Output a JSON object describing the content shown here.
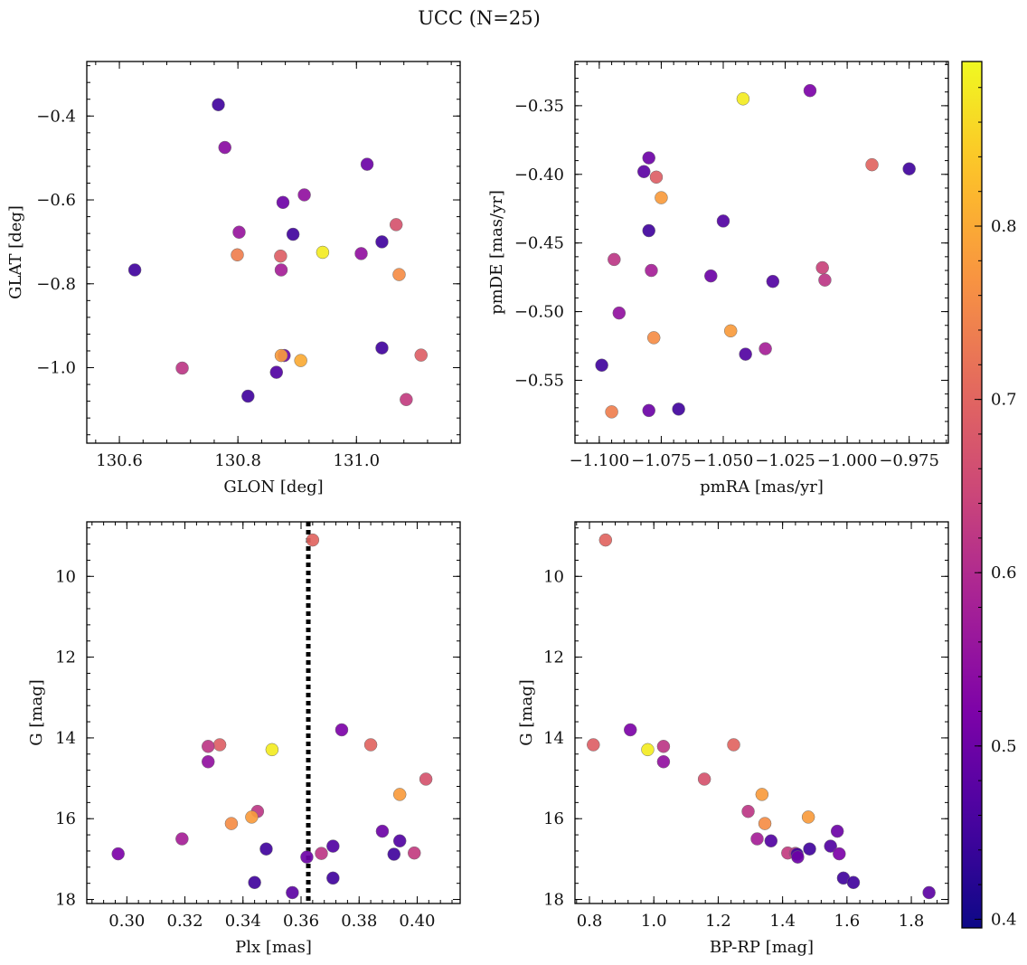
{
  "figure": {
    "title": "UCC (N=25)"
  },
  "colorbar": {
    "colormap": "plasma",
    "vmin": 0.395,
    "vmax": 0.895,
    "ticks": [
      0.4,
      0.5,
      0.6,
      0.7,
      0.8
    ],
    "tick_labels": [
      "0.4",
      "0.5",
      "0.6",
      "0.7",
      "0.8"
    ]
  },
  "chart_data": [
    {
      "type": "scatter",
      "xlabel": "GLON [deg]",
      "ylabel": "GLAT [deg]",
      "xlim": [
        130.545,
        131.175
      ],
      "ylim": [
        -1.18,
        -0.27
      ],
      "y_inverted": false,
      "xticks": [
        130.6,
        130.8,
        131.0
      ],
      "xtick_labels": [
        "130.6",
        "130.8",
        "131.0"
      ],
      "yticks": [
        -0.4,
        -0.6,
        -0.8,
        -1.0
      ],
      "ytick_labels": [
        "−0.4",
        "−0.6",
        "−0.8",
        "−1.0"
      ],
      "points": [
        {
          "x": 130.767,
          "y": -0.373,
          "c": 0.45
        },
        {
          "x": 130.778,
          "y": -0.475,
          "c": 0.54
        },
        {
          "x": 131.018,
          "y": -0.515,
          "c": 0.5
        },
        {
          "x": 130.912,
          "y": -0.588,
          "c": 0.55
        },
        {
          "x": 130.876,
          "y": -0.606,
          "c": 0.5
        },
        {
          "x": 131.067,
          "y": -0.659,
          "c": 0.67
        },
        {
          "x": 130.802,
          "y": -0.677,
          "c": 0.56
        },
        {
          "x": 130.893,
          "y": -0.682,
          "c": 0.45
        },
        {
          "x": 131.043,
          "y": -0.7,
          "c": 0.45
        },
        {
          "x": 130.943,
          "y": -0.725,
          "c": 0.88
        },
        {
          "x": 131.008,
          "y": -0.728,
          "c": 0.55
        },
        {
          "x": 130.799,
          "y": -0.731,
          "c": 0.74
        },
        {
          "x": 130.872,
          "y": -0.734,
          "c": 0.69
        },
        {
          "x": 130.626,
          "y": -0.767,
          "c": 0.45
        },
        {
          "x": 130.873,
          "y": -0.767,
          "c": 0.58
        },
        {
          "x": 131.072,
          "y": -0.778,
          "c": 0.76
        },
        {
          "x": 131.043,
          "y": -0.953,
          "c": 0.45
        },
        {
          "x": 131.109,
          "y": -0.97,
          "c": 0.69
        },
        {
          "x": 130.878,
          "y": -0.971,
          "c": 0.5
        },
        {
          "x": 130.873,
          "y": -0.971,
          "c": 0.78
        },
        {
          "x": 130.906,
          "y": -0.983,
          "c": 0.8
        },
        {
          "x": 130.706,
          "y": -1.001,
          "c": 0.62
        },
        {
          "x": 130.865,
          "y": -1.011,
          "c": 0.47
        },
        {
          "x": 130.817,
          "y": -1.068,
          "c": 0.45
        },
        {
          "x": 131.084,
          "y": -1.076,
          "c": 0.63
        }
      ]
    },
    {
      "type": "scatter",
      "xlabel": "pmRA [mas/yr]",
      "ylabel": "pmDE [mas/yr]",
      "xlim": [
        -1.1098,
        -0.9592
      ],
      "ylim": [
        -0.5958,
        -0.3178
      ],
      "y_inverted": false,
      "xticks": [
        -1.1,
        -1.075,
        -1.05,
        -1.025,
        -1.0,
        -0.975
      ],
      "xtick_labels": [
        "−1.100",
        "−1.075",
        "−1.050",
        "−1.025",
        "−1.000",
        "−0.975"
      ],
      "yticks": [
        -0.35,
        -0.4,
        -0.45,
        -0.5,
        -0.55
      ],
      "ytick_labels": [
        "−0.35",
        "−0.40",
        "−0.45",
        "−0.50",
        "−0.55"
      ],
      "points": [
        {
          "x": -1.042,
          "y": -0.345,
          "c": 0.88
        },
        {
          "x": -1.015,
          "y": -0.339,
          "c": 0.52
        },
        {
          "x": -1.08,
          "y": -0.388,
          "c": 0.5
        },
        {
          "x": -1.082,
          "y": -0.398,
          "c": 0.48
        },
        {
          "x": -1.077,
          "y": -0.402,
          "c": 0.69
        },
        {
          "x": -0.99,
          "y": -0.393,
          "c": 0.7
        },
        {
          "x": -0.975,
          "y": -0.396,
          "c": 0.45
        },
        {
          "x": -1.075,
          "y": -0.417,
          "c": 0.78
        },
        {
          "x": -1.05,
          "y": -0.434,
          "c": 0.47
        },
        {
          "x": -1.08,
          "y": -0.441,
          "c": 0.45
        },
        {
          "x": -1.094,
          "y": -0.462,
          "c": 0.62
        },
        {
          "x": -1.079,
          "y": -0.47,
          "c": 0.58
        },
        {
          "x": -1.01,
          "y": -0.468,
          "c": 0.64
        },
        {
          "x": -1.055,
          "y": -0.474,
          "c": 0.5
        },
        {
          "x": -1.009,
          "y": -0.477,
          "c": 0.62
        },
        {
          "x": -1.03,
          "y": -0.478,
          "c": 0.47
        },
        {
          "x": -1.092,
          "y": -0.501,
          "c": 0.55
        },
        {
          "x": -1.047,
          "y": -0.514,
          "c": 0.78
        },
        {
          "x": -1.078,
          "y": -0.519,
          "c": 0.76
        },
        {
          "x": -1.033,
          "y": -0.527,
          "c": 0.58
        },
        {
          "x": -1.041,
          "y": -0.531,
          "c": 0.47
        },
        {
          "x": -1.099,
          "y": -0.539,
          "c": 0.45
        },
        {
          "x": -1.068,
          "y": -0.571,
          "c": 0.45
        },
        {
          "x": -1.08,
          "y": -0.572,
          "c": 0.5
        },
        {
          "x": -1.095,
          "y": -0.573,
          "c": 0.74
        }
      ]
    },
    {
      "type": "scatter",
      "xlabel": "Plx [mas]",
      "ylabel": "G [mag]",
      "xlim": [
        0.2862,
        0.4148
      ],
      "ylim": [
        18.1,
        8.65
      ],
      "y_inverted": true,
      "vline": {
        "x": 0.3625,
        "style": "dotted",
        "color": "#000000"
      },
      "xticks": [
        0.3,
        0.32,
        0.34,
        0.36,
        0.38,
        0.4
      ],
      "xtick_labels": [
        "0.30",
        "0.32",
        "0.34",
        "0.36",
        "0.38",
        "0.40"
      ],
      "yticks": [
        10,
        12,
        14,
        16,
        18
      ],
      "ytick_labels": [
        "10",
        "12",
        "14",
        "16",
        "18"
      ],
      "points": [
        {
          "x": 0.364,
          "y": 9.1,
          "c": 0.7
        },
        {
          "x": 0.374,
          "y": 13.8,
          "c": 0.52
        },
        {
          "x": 0.332,
          "y": 14.17,
          "c": 0.69
        },
        {
          "x": 0.384,
          "y": 14.17,
          "c": 0.7
        },
        {
          "x": 0.328,
          "y": 14.21,
          "c": 0.62
        },
        {
          "x": 0.35,
          "y": 14.29,
          "c": 0.88
        },
        {
          "x": 0.328,
          "y": 14.59,
          "c": 0.55
        },
        {
          "x": 0.403,
          "y": 15.02,
          "c": 0.67
        },
        {
          "x": 0.394,
          "y": 15.4,
          "c": 0.78
        },
        {
          "x": 0.345,
          "y": 15.82,
          "c": 0.62
        },
        {
          "x": 0.343,
          "y": 15.96,
          "c": 0.78
        },
        {
          "x": 0.336,
          "y": 16.12,
          "c": 0.76
        },
        {
          "x": 0.388,
          "y": 16.31,
          "c": 0.5
        },
        {
          "x": 0.319,
          "y": 16.5,
          "c": 0.58
        },
        {
          "x": 0.394,
          "y": 16.55,
          "c": 0.47
        },
        {
          "x": 0.371,
          "y": 16.68,
          "c": 0.47
        },
        {
          "x": 0.348,
          "y": 16.75,
          "c": 0.45
        },
        {
          "x": 0.399,
          "y": 16.85,
          "c": 0.63
        },
        {
          "x": 0.367,
          "y": 16.86,
          "c": 0.62
        },
        {
          "x": 0.297,
          "y": 16.87,
          "c": 0.52
        },
        {
          "x": 0.392,
          "y": 16.88,
          "c": 0.45
        },
        {
          "x": 0.362,
          "y": 16.95,
          "c": 0.5
        },
        {
          "x": 0.371,
          "y": 17.47,
          "c": 0.45
        },
        {
          "x": 0.344,
          "y": 17.58,
          "c": 0.45
        },
        {
          "x": 0.357,
          "y": 17.83,
          "c": 0.48
        }
      ]
    },
    {
      "type": "scatter",
      "xlabel": "BP-RP [mag]",
      "ylabel": "G [mag]",
      "xlim": [
        0.755,
        1.915
      ],
      "ylim": [
        18.1,
        8.65
      ],
      "y_inverted": true,
      "xticks": [
        0.8,
        1.0,
        1.2,
        1.4,
        1.6,
        1.8
      ],
      "xtick_labels": [
        "0.8",
        "1.0",
        "1.2",
        "1.4",
        "1.6",
        "1.8"
      ],
      "yticks": [
        10,
        12,
        14,
        16,
        18
      ],
      "ytick_labels": [
        "10",
        "12",
        "14",
        "16",
        "18"
      ],
      "points": [
        {
          "x": 0.85,
          "y": 9.1,
          "c": 0.7
        },
        {
          "x": 0.927,
          "y": 13.8,
          "c": 0.52
        },
        {
          "x": 0.812,
          "y": 14.17,
          "c": 0.69
        },
        {
          "x": 1.248,
          "y": 14.17,
          "c": 0.7
        },
        {
          "x": 1.03,
          "y": 14.21,
          "c": 0.62
        },
        {
          "x": 0.981,
          "y": 14.29,
          "c": 0.88
        },
        {
          "x": 1.03,
          "y": 14.59,
          "c": 0.55
        },
        {
          "x": 1.157,
          "y": 15.02,
          "c": 0.67
        },
        {
          "x": 1.336,
          "y": 15.4,
          "c": 0.78
        },
        {
          "x": 1.293,
          "y": 15.82,
          "c": 0.62
        },
        {
          "x": 1.48,
          "y": 15.96,
          "c": 0.78
        },
        {
          "x": 1.345,
          "y": 16.12,
          "c": 0.76
        },
        {
          "x": 1.57,
          "y": 16.31,
          "c": 0.5
        },
        {
          "x": 1.321,
          "y": 16.5,
          "c": 0.58
        },
        {
          "x": 1.364,
          "y": 16.55,
          "c": 0.47
        },
        {
          "x": 1.549,
          "y": 16.68,
          "c": 0.47
        },
        {
          "x": 1.484,
          "y": 16.75,
          "c": 0.45
        },
        {
          "x": 1.416,
          "y": 16.85,
          "c": 0.63
        },
        {
          "x": 1.44,
          "y": 16.86,
          "c": 0.62
        },
        {
          "x": 1.576,
          "y": 16.87,
          "c": 0.52
        },
        {
          "x": 1.445,
          "y": 16.88,
          "c": 0.45
        },
        {
          "x": 1.447,
          "y": 16.95,
          "c": 0.5
        },
        {
          "x": 1.589,
          "y": 17.47,
          "c": 0.45
        },
        {
          "x": 1.62,
          "y": 17.58,
          "c": 0.45
        },
        {
          "x": 1.855,
          "y": 17.83,
          "c": 0.48
        }
      ]
    }
  ]
}
